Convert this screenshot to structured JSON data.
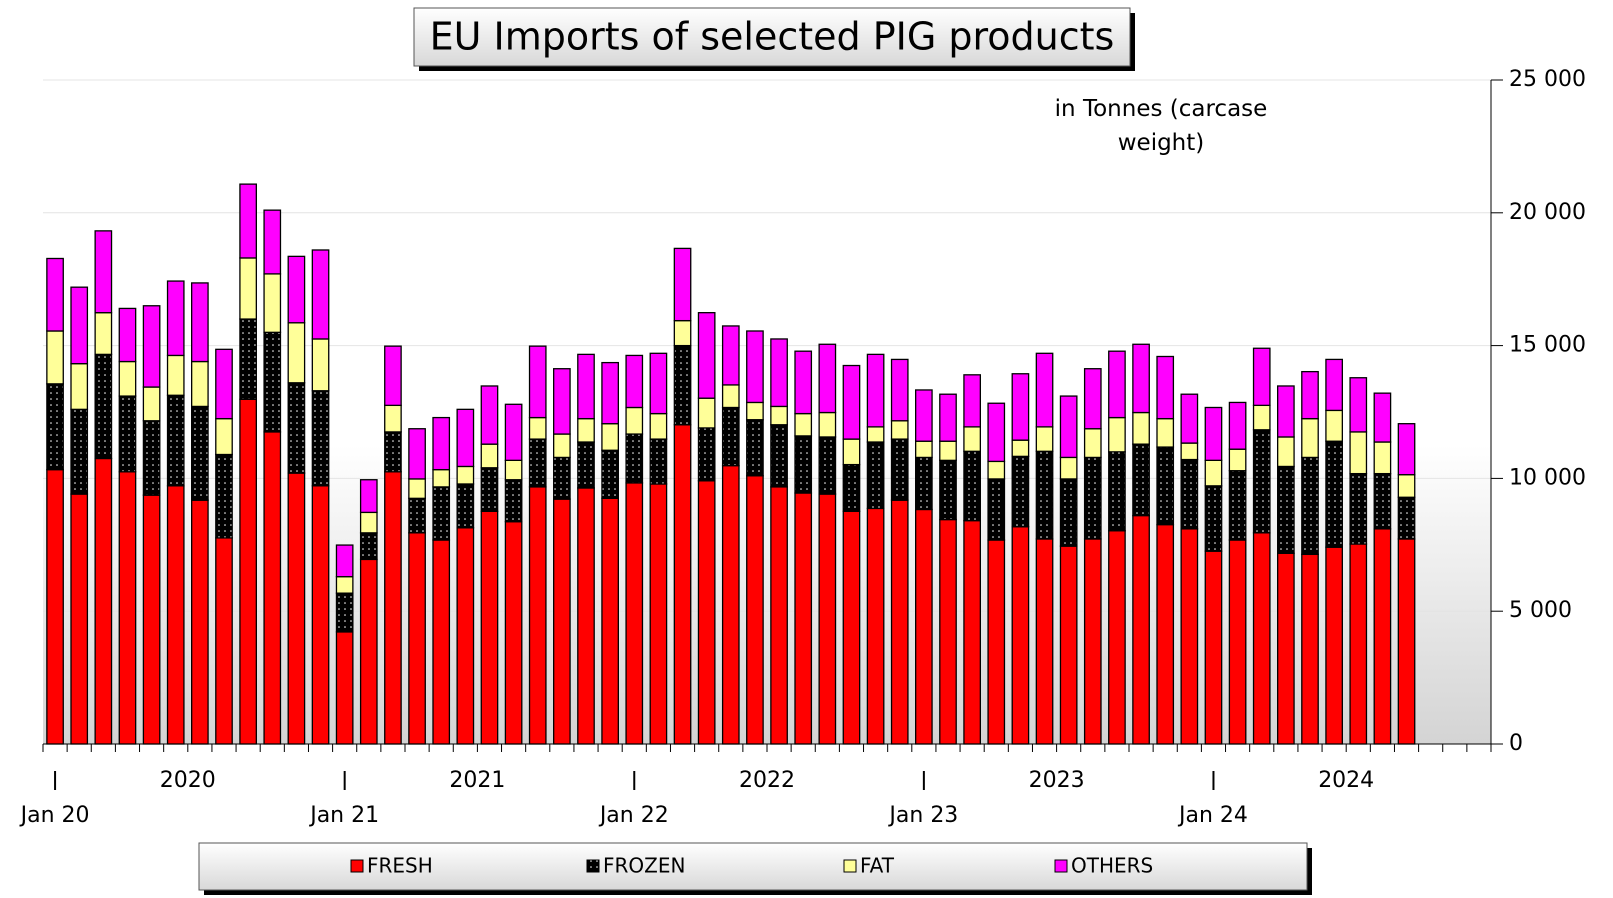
{
  "chart_data": {
    "type": "stacked_bar",
    "title": "EU Imports of selected PIG products",
    "subtitle": "in Tonnes (carcase weight)",
    "categories": [
      null,
      null,
      null,
      null,
      null,
      null,
      null,
      null,
      null,
      null,
      null,
      null,
      null,
      null,
      null,
      null,
      null,
      null,
      null,
      null,
      null,
      null,
      null,
      null,
      null,
      null,
      null,
      null,
      null,
      null,
      null,
      null,
      null,
      null,
      null,
      null,
      null,
      null,
      null,
      null,
      null,
      null,
      null,
      null,
      null,
      null,
      null,
      null,
      null,
      null,
      null,
      null,
      null,
      null,
      null,
      null,
      null,
      null,
      null,
      null
    ],
    "x_period_labels": [
      "Jan 20",
      "Jan 21",
      "Jan 22",
      "Jan 23",
      "Jan 24"
    ],
    "x_year_labels": [
      "2020",
      "2021",
      "2022",
      "2023",
      "2024"
    ],
    "series": [
      {
        "name": "FRESH",
        "color": "#ff0000",
        "values": [
          10330,
          9410,
          10750,
          10250,
          9370,
          9720,
          9180,
          7760,
          12980,
          11750,
          10200,
          9720,
          4220,
          6950,
          10250,
          7950,
          7680,
          8140,
          8760,
          8370,
          9680,
          9220,
          9640,
          9250,
          9830,
          9790,
          12020,
          9910,
          10480,
          10100,
          9680,
          9450,
          9410,
          8760,
          8870,
          9180,
          8830,
          8450,
          8410,
          7680,
          8180,
          7720,
          7450,
          7720,
          8030,
          8600,
          8260,
          8100,
          7260,
          7680,
          7950,
          7180,
          7140,
          7410,
          7530,
          8100,
          7720,
          null,
          null,
          null
        ]
      },
      {
        "name": "FROZEN",
        "color": "#000000",
        "pattern": "dots",
        "values": [
          3230,
          3190,
          3920,
          2850,
          2800,
          3410,
          3530,
          3140,
          3020,
          3750,
          3400,
          3580,
          1460,
          1000,
          1500,
          1300,
          2000,
          1650,
          1640,
          1580,
          1800,
          1570,
          1730,
          1810,
          1840,
          1690,
          2980,
          1990,
          2190,
          2110,
          2340,
          2150,
          2150,
          1760,
          2500,
          2300,
          1960,
          2230,
          2610,
          2300,
          2650,
          3300,
          2530,
          3070,
          2970,
          2690,
          2920,
          2610,
          2460,
          2610,
          3880,
          3270,
          3650,
          3990,
          2650,
          2080,
          1570,
          null,
          null,
          null
        ]
      },
      {
        "name": "FAT",
        "color": "#ffff99",
        "values": [
          1990,
          1720,
          1570,
          1300,
          1270,
          1500,
          1690,
          1350,
          2300,
          2200,
          2260,
          1950,
          620,
          770,
          1000,
          730,
          650,
          660,
          890,
          730,
          810,
          880,
          880,
          1000,
          1000,
          960,
          940,
          1120,
          850,
          650,
          690,
          840,
          920,
          960,
          570,
          690,
          610,
          720,
          920,
          660,
          610,
          920,
          810,
          1080,
          1290,
          1190,
          1070,
          620,
          960,
          810,
          920,
          1110,
          1460,
          1160,
          1570,
          1190,
          850,
          null,
          null,
          null
        ]
      },
      {
        "name": "OTHERS",
        "color": "#ff00ff",
        "values": [
          2730,
          2880,
          3080,
          2000,
          3060,
          2800,
          2960,
          2610,
          2780,
          2400,
          2500,
          3350,
          1190,
          1230,
          2230,
          1890,
          1960,
          2150,
          2190,
          2110,
          2690,
          2460,
          2420,
          2300,
          1960,
          2270,
          2720,
          3220,
          2220,
          2690,
          2540,
          2350,
          2570,
          2770,
          2730,
          2310,
          1930,
          1770,
          1960,
          2190,
          2500,
          2770,
          2310,
          2260,
          2500,
          2570,
          2340,
          1840,
          1990,
          1760,
          2150,
          1920,
          1770,
          1920,
          2040,
          1840,
          1920,
          null,
          null,
          null
        ]
      }
    ],
    "ylim": [
      0,
      25000
    ],
    "yticks": [
      0,
      {
        "value": 5000,
        "label": "5 000"
      },
      {
        "value": 10000,
        "label": "10 000"
      },
      {
        "value": 15000,
        "label": "15 000"
      },
      {
        "value": 20000,
        "label": "20 000"
      },
      {
        "value": 25000,
        "label": "25 000"
      }
    ],
    "grid": true,
    "legend": "bottom"
  }
}
